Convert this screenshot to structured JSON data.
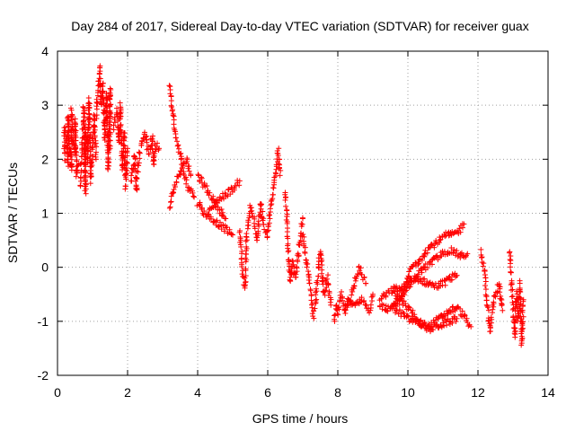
{
  "chart_data": {
    "type": "scatter",
    "title": "Day 284 of 2017, Sidereal Day-to-day VTEC variation (SDTVAR) for receiver guax",
    "xlabel": "GPS time / hours",
    "ylabel": "SDTVAR / TECUs",
    "xlim": [
      0,
      14
    ],
    "ylim": [
      -2,
      4
    ],
    "xticks": [
      "0",
      "2",
      "4",
      "6",
      "8",
      "10",
      "12",
      "14"
    ],
    "yticks": [
      "-2",
      "-1",
      "0",
      "1",
      "2",
      "3",
      "4"
    ],
    "grid": true,
    "marker": "+",
    "color": "#ff0000",
    "series": [
      {
        "name": "SDTVAR",
        "segments": [
          [
            [
              0.2,
              2.0
            ],
            [
              0.2,
              2.6
            ],
            [
              0.25,
              2.4
            ],
            [
              0.3,
              1.9
            ],
            [
              0.3,
              2.8
            ],
            [
              0.35,
              2.2
            ],
            [
              0.4,
              1.8
            ],
            [
              0.4,
              2.9
            ],
            [
              0.45,
              2.4
            ],
            [
              0.5,
              2.1
            ],
            [
              0.5,
              2.7
            ],
            [
              0.55,
              1.7
            ],
            [
              0.6,
              1.9
            ]
          ],
          [
            [
              0.65,
              1.5
            ],
            [
              0.7,
              2.2
            ],
            [
              0.75,
              3.0
            ],
            [
              0.8,
              1.4
            ],
            [
              0.8,
              2.6
            ],
            [
              0.85,
              2.0
            ],
            [
              0.9,
              3.1
            ],
            [
              0.95,
              1.6
            ],
            [
              1.0,
              2.3
            ],
            [
              1.05,
              2.8
            ],
            [
              1.1,
              2.0
            ]
          ],
          [
            [
              1.1,
              2.8
            ],
            [
              1.15,
              3.3
            ],
            [
              1.2,
              3.7
            ],
            [
              1.25,
              3.0
            ],
            [
              1.3,
              3.4
            ],
            [
              1.35,
              2.4
            ],
            [
              1.4,
              3.2
            ],
            [
              1.45,
              1.8
            ],
            [
              1.5,
              3.3
            ],
            [
              1.5,
              2.2
            ]
          ],
          [
            [
              1.6,
              2.6
            ],
            [
              1.7,
              2.9
            ],
            [
              1.75,
              2.3
            ],
            [
              1.8,
              3.0
            ],
            [
              1.85,
              1.8
            ],
            [
              1.9,
              2.5
            ],
            [
              1.95,
              1.5
            ],
            [
              2.0,
              2.2
            ]
          ],
          [
            [
              2.1,
              1.6
            ],
            [
              2.2,
              2.1
            ],
            [
              2.25,
              1.4
            ],
            [
              2.3,
              1.9
            ],
            [
              2.4,
              2.3
            ],
            [
              2.5,
              2.5
            ],
            [
              2.6,
              2.1
            ],
            [
              2.7,
              2.4
            ],
            [
              2.75,
              1.9
            ],
            [
              2.8,
              2.3
            ],
            [
              2.9,
              2.2
            ]
          ],
          [
            [
              3.2,
              3.4
            ],
            [
              3.25,
              3.0
            ],
            [
              3.3,
              2.8
            ],
            [
              3.35,
              2.5
            ],
            [
              3.4,
              2.3
            ],
            [
              3.5,
              2.1
            ],
            [
              3.6,
              1.8
            ],
            [
              3.7,
              1.5
            ],
            [
              3.8,
              1.4
            ],
            [
              3.9,
              1.3
            ]
          ],
          [
            [
              3.2,
              1.1
            ],
            [
              3.3,
              1.4
            ],
            [
              3.4,
              1.6
            ],
            [
              3.5,
              1.8
            ],
            [
              3.6,
              1.9
            ],
            [
              3.7,
              2.0
            ],
            [
              3.8,
              1.7
            ]
          ],
          [
            [
              4.0,
              1.2
            ],
            [
              4.2,
              1.0
            ],
            [
              4.4,
              0.9
            ],
            [
              4.6,
              0.8
            ],
            [
              4.8,
              0.7
            ],
            [
              5.0,
              0.6
            ]
          ],
          [
            [
              4.0,
              1.7
            ],
            [
              4.2,
              1.5
            ],
            [
              4.4,
              1.3
            ],
            [
              4.6,
              1.1
            ],
            [
              4.8,
              0.9
            ]
          ],
          [
            [
              4.3,
              1.0
            ],
            [
              4.5,
              1.2
            ],
            [
              4.7,
              1.3
            ],
            [
              4.9,
              1.4
            ],
            [
              5.1,
              1.5
            ],
            [
              5.2,
              1.6
            ]
          ],
          [
            [
              5.2,
              0.7
            ],
            [
              5.25,
              0.3
            ],
            [
              5.3,
              -0.2
            ],
            [
              5.35,
              -0.4
            ],
            [
              5.4,
              0.6
            ],
            [
              5.5,
              1.1
            ],
            [
              5.6,
              0.9
            ],
            [
              5.7,
              0.5
            ],
            [
              5.8,
              1.2
            ],
            [
              5.9,
              0.7
            ]
          ],
          [
            [
              5.95,
              0.6
            ],
            [
              6.0,
              0.6
            ],
            [
              6.1,
              1.2
            ],
            [
              6.2,
              1.6
            ],
            [
              6.25,
              1.9
            ],
            [
              6.3,
              2.2
            ],
            [
              6.35,
              1.7
            ]
          ],
          [
            [
              6.5,
              1.4
            ],
            [
              6.55,
              0.8
            ],
            [
              6.6,
              0.2
            ],
            [
              6.65,
              -0.3
            ],
            [
              6.7,
              0.1
            ],
            [
              6.8,
              -0.2
            ],
            [
              6.9,
              0.4
            ],
            [
              7.0,
              0.9
            ]
          ],
          [
            [
              7.0,
              0.6
            ],
            [
              7.1,
              0.1
            ],
            [
              7.2,
              -0.3
            ],
            [
              7.25,
              -0.6
            ],
            [
              7.3,
              -0.9
            ],
            [
              7.35,
              -0.7
            ],
            [
              7.4,
              -0.3
            ],
            [
              7.5,
              0.3
            ],
            [
              7.6,
              -0.5
            ],
            [
              7.7,
              -0.2
            ],
            [
              7.8,
              -0.7
            ]
          ],
          [
            [
              7.9,
              -1.0
            ],
            [
              7.95,
              -0.7
            ],
            [
              8.0,
              -0.9
            ],
            [
              8.1,
              -0.5
            ],
            [
              8.2,
              -0.8
            ],
            [
              8.3,
              -0.6
            ],
            [
              8.5,
              -0.7
            ],
            [
              8.7,
              -0.6
            ],
            [
              8.9,
              -0.8
            ],
            [
              9.0,
              -0.5
            ]
          ],
          [
            [
              8.2,
              -0.8
            ],
            [
              8.4,
              -0.5
            ],
            [
              8.6,
              0.0
            ],
            [
              8.8,
              -0.3
            ]
          ],
          [
            [
              9.2,
              -0.6
            ],
            [
              9.4,
              -0.5
            ],
            [
              9.6,
              -0.4
            ],
            [
              9.8,
              -0.4
            ],
            [
              10.0,
              -0.3
            ],
            [
              10.2,
              -0.2
            ],
            [
              10.4,
              -0.25
            ],
            [
              10.6,
              -0.3
            ],
            [
              10.8,
              -0.35
            ],
            [
              11.0,
              -0.3
            ],
            [
              11.2,
              -0.2
            ],
            [
              11.4,
              -0.15
            ]
          ],
          [
            [
              9.2,
              -0.7
            ],
            [
              9.5,
              -0.8
            ],
            [
              9.7,
              -0.7
            ],
            [
              9.9,
              -0.4
            ],
            [
              10.1,
              0.0
            ],
            [
              10.3,
              0.1
            ],
            [
              10.5,
              0.3
            ],
            [
              10.7,
              0.4
            ],
            [
              10.9,
              0.5
            ],
            [
              11.1,
              0.6
            ],
            [
              11.3,
              0.6
            ],
            [
              11.5,
              0.7
            ],
            [
              11.6,
              0.8
            ]
          ],
          [
            [
              9.5,
              -0.7
            ],
            [
              9.7,
              -0.6
            ],
            [
              9.9,
              -0.45
            ],
            [
              10.1,
              -0.3
            ],
            [
              10.3,
              -0.1
            ],
            [
              10.5,
              0.0
            ],
            [
              10.7,
              0.1
            ],
            [
              10.9,
              0.2
            ],
            [
              11.1,
              0.3
            ],
            [
              11.3,
              0.3
            ],
            [
              11.5,
              0.2
            ],
            [
              11.7,
              0.25
            ]
          ],
          [
            [
              9.6,
              -0.8
            ],
            [
              9.8,
              -0.85
            ],
            [
              10.0,
              -0.95
            ],
            [
              10.2,
              -1.0
            ],
            [
              10.4,
              -1.05
            ],
            [
              10.6,
              -1.1
            ],
            [
              10.8,
              -1.0
            ],
            [
              11.0,
              -0.9
            ],
            [
              11.2,
              -0.8
            ],
            [
              11.4,
              -0.75
            ],
            [
              11.6,
              -0.9
            ],
            [
              11.8,
              -1.1
            ]
          ],
          [
            [
              9.6,
              -0.5
            ],
            [
              9.8,
              -0.6
            ],
            [
              10.0,
              -0.75
            ],
            [
              10.2,
              -0.9
            ],
            [
              10.4,
              -1.05
            ],
            [
              10.6,
              -1.15
            ],
            [
              10.8,
              -1.1
            ],
            [
              11.0,
              -1.05
            ],
            [
              11.2,
              -1.0
            ],
            [
              11.4,
              -0.95
            ]
          ],
          [
            [
              12.1,
              0.3
            ],
            [
              12.2,
              -0.2
            ],
            [
              12.25,
              -0.6
            ],
            [
              12.3,
              -0.9
            ],
            [
              12.35,
              -1.2
            ],
            [
              12.4,
              -0.8
            ],
            [
              12.5,
              -0.5
            ],
            [
              12.6,
              -0.3
            ],
            [
              12.7,
              -0.8
            ]
          ],
          [
            [
              12.9,
              0.3
            ],
            [
              12.95,
              -0.2
            ],
            [
              13.0,
              -0.8
            ],
            [
              13.05,
              -1.3
            ],
            [
              13.1,
              -0.5
            ],
            [
              13.15,
              -1.0
            ],
            [
              13.2,
              -0.3
            ],
            [
              13.25,
              -1.4
            ],
            [
              13.3,
              -0.6
            ]
          ]
        ]
      }
    ]
  }
}
